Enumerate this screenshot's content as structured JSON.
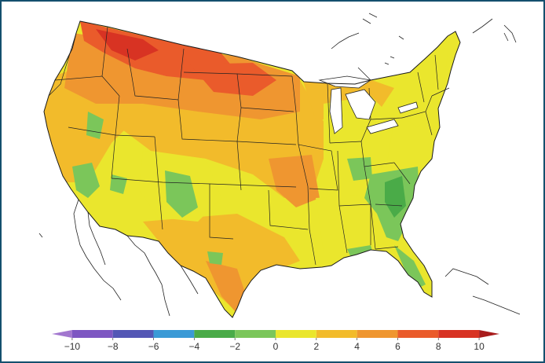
{
  "legend": {
    "ticks": [
      {
        "value": -10,
        "label": "−10"
      },
      {
        "value": -8,
        "label": "−8"
      },
      {
        "value": -6,
        "label": "−6"
      },
      {
        "value": -4,
        "label": "−4"
      },
      {
        "value": -2,
        "label": "−2"
      },
      {
        "value": 0,
        "label": "0"
      },
      {
        "value": 2,
        "label": "2"
      },
      {
        "value": 4,
        "label": "4"
      },
      {
        "value": 6,
        "label": "6"
      },
      {
        "value": 8,
        "label": "8"
      },
      {
        "value": 10,
        "label": "10"
      }
    ],
    "min": -11,
    "max": 11,
    "bins": [
      {
        "from": -11,
        "to": -10,
        "color": "#a277cf"
      },
      {
        "from": -10,
        "to": -8,
        "color": "#7e57c2"
      },
      {
        "from": -8,
        "to": -6,
        "color": "#5457b5"
      },
      {
        "from": -6,
        "to": -4,
        "color": "#3b9ad6"
      },
      {
        "from": -4,
        "to": -2,
        "color": "#4aab48"
      },
      {
        "from": -2,
        "to": 0,
        "color": "#7bc65a"
      },
      {
        "from": 0,
        "to": 2,
        "color": "#eae62d"
      },
      {
        "from": 2,
        "to": 4,
        "color": "#f2bb2b"
      },
      {
        "from": 4,
        "to": 6,
        "color": "#ef9630"
      },
      {
        "from": 6,
        "to": 8,
        "color": "#ea5b2b"
      },
      {
        "from": 8,
        "to": 10,
        "color": "#d83323"
      },
      {
        "from": 10,
        "to": 11,
        "color": "#a81c1c"
      }
    ]
  },
  "colors": {
    "frame": "#14506e",
    "background": "#ffffff",
    "border": "#1a1a1a",
    "base_fill": "#eae62d"
  }
}
